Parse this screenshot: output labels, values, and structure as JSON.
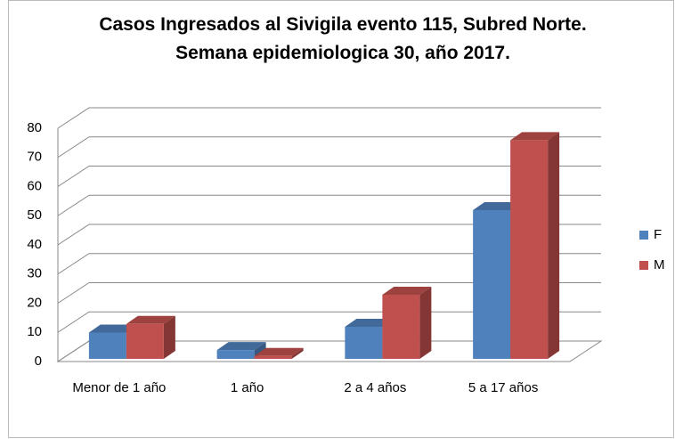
{
  "chart_data": {
    "type": "bar3d",
    "title": "Casos Ingresados al Sivigila evento 115, Subred Norte. Semana epidemiologica 30, año 2017.",
    "categories": [
      "Menor de 1 año",
      "1 año",
      "2 a 4 años",
      "5 a 17 años"
    ],
    "series": [
      {
        "name": "F",
        "color": "#4f81bd",
        "values": [
          9,
          3,
          11,
          51
        ]
      },
      {
        "name": "M",
        "color": "#c0504d",
        "values": [
          12,
          1,
          22,
          75
        ]
      }
    ],
    "ylim": [
      0,
      80
    ],
    "yticks": [
      0,
      10,
      20,
      30,
      40,
      50,
      60,
      70,
      80
    ],
    "grid": true,
    "legend": "right"
  }
}
